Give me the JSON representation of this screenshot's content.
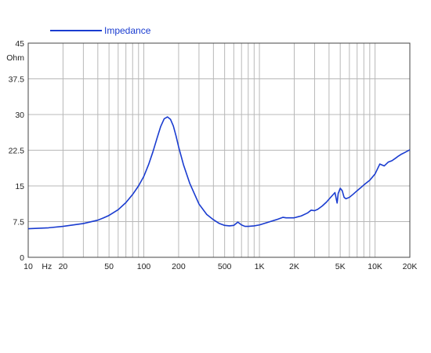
{
  "chart_data": {
    "type": "line",
    "title": "",
    "xlabel": "",
    "ylabel": "",
    "x_scale": "log",
    "xlim": [
      10,
      20000
    ],
    "ylim": [
      0,
      45
    ],
    "grid": true,
    "legend_position": "top-left",
    "y_unit": "Ohm",
    "x_unit": "Hz",
    "y_ticks": [
      "0",
      "7.5",
      "15",
      "22.5",
      "30",
      "37.5",
      "45"
    ],
    "y_tick_values": [
      0,
      7.5,
      15,
      22.5,
      30,
      37.5,
      45
    ],
    "x_ticks": [
      {
        "value": 10,
        "label": "10"
      },
      {
        "value": 20,
        "label": "20"
      },
      {
        "value": 50,
        "label": "50"
      },
      {
        "value": 100,
        "label": "100"
      },
      {
        "value": 200,
        "label": "200"
      },
      {
        "value": 500,
        "label": "500"
      },
      {
        "value": 1000,
        "label": "1K"
      },
      {
        "value": 2000,
        "label": "2K"
      },
      {
        "value": 5000,
        "label": "5K"
      },
      {
        "value": 10000,
        "label": "10K"
      },
      {
        "value": 20000,
        "label": "20K"
      }
    ],
    "series": [
      {
        "name": "Impedance",
        "color": "#1a3cd0",
        "x": [
          10,
          15,
          20,
          30,
          40,
          45,
          50,
          60,
          70,
          80,
          90,
          100,
          110,
          120,
          130,
          140,
          150,
          160,
          170,
          180,
          190,
          200,
          220,
          250,
          300,
          350,
          400,
          450,
          500,
          550,
          600,
          650,
          700,
          750,
          800,
          900,
          1000,
          1200,
          1400,
          1600,
          1700,
          2000,
          2300,
          2600,
          2800,
          3000,
          3200,
          3500,
          3800,
          4200,
          4500,
          4700,
          4800,
          5000,
          5200,
          5400,
          5600,
          6000,
          6500,
          7000,
          7500,
          8000,
          9000,
          10000,
          11000,
          12000,
          13000,
          14000,
          15000,
          16000,
          17000,
          18000,
          19000,
          20000
        ],
        "values": [
          6.0,
          6.2,
          6.5,
          7.1,
          7.8,
          8.3,
          8.8,
          10.0,
          11.5,
          13.2,
          15.0,
          17.0,
          19.5,
          22.2,
          25.0,
          27.5,
          29.1,
          29.5,
          29.0,
          27.6,
          25.5,
          23.2,
          19.5,
          15.5,
          11.2,
          9.0,
          7.9,
          7.1,
          6.7,
          6.6,
          6.7,
          7.4,
          6.8,
          6.5,
          6.5,
          6.6,
          6.8,
          7.4,
          7.9,
          8.4,
          8.3,
          8.3,
          8.7,
          9.3,
          9.9,
          9.8,
          10.1,
          10.8,
          11.6,
          12.8,
          13.6,
          11.4,
          13.4,
          14.5,
          14.0,
          12.6,
          12.3,
          12.6,
          13.3,
          14.0,
          14.6,
          15.2,
          16.2,
          17.5,
          19.6,
          19.2,
          20.0,
          20.3,
          20.8,
          21.3,
          21.7,
          22.0,
          22.3,
          22.6
        ]
      }
    ]
  }
}
